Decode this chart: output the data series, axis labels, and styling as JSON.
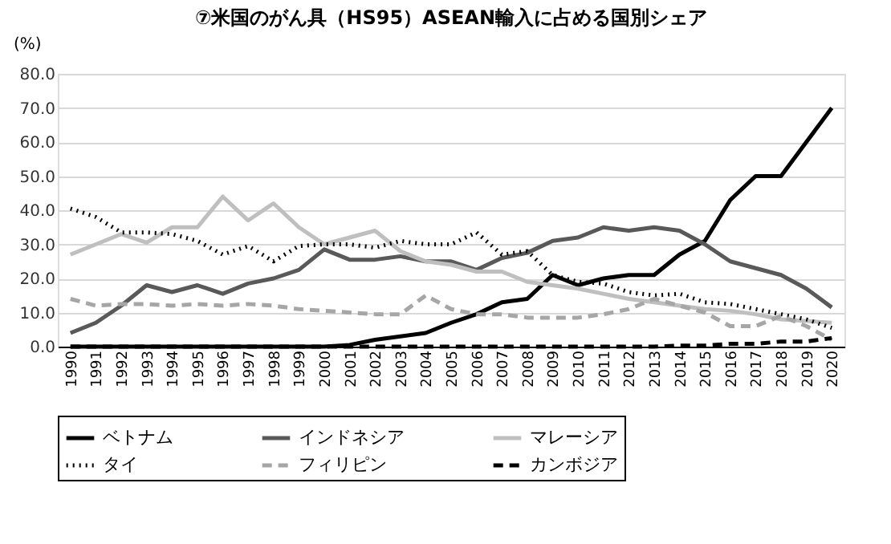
{
  "chart_data": {
    "type": "line",
    "title": "⑦米国のがん具（HS95）ASEAN輸入に占める国別シェア",
    "ylabel": "(%)",
    "categories": [
      "1990",
      "1991",
      "1992",
      "1993",
      "1994",
      "1995",
      "1996",
      "1997",
      "1998",
      "1999",
      "2000",
      "2001",
      "2002",
      "2003",
      "2004",
      "2005",
      "2006",
      "2007",
      "2008",
      "2009",
      "2010",
      "2011",
      "2012",
      "2013",
      "2014",
      "2015",
      "2016",
      "2017",
      "2018",
      "2019",
      "2020"
    ],
    "series": [
      {
        "name": "ベトナム",
        "color": "#000000",
        "line_style": "solid",
        "values": [
          0,
          0,
          0,
          0,
          0,
          0,
          0,
          0,
          0,
          0,
          0,
          0.5,
          2,
          3,
          4,
          7,
          9.5,
          13,
          14,
          21,
          18,
          20,
          21,
          21,
          27,
          31,
          43,
          50,
          50,
          60,
          70
        ]
      },
      {
        "name": "インドネシア",
        "color": "#595959",
        "line_style": "solid",
        "values": [
          4,
          7,
          12,
          18,
          16,
          18,
          15.5,
          18.5,
          20,
          22.5,
          28.5,
          25.5,
          25.5,
          26.5,
          25,
          25,
          22.5,
          26,
          27.5,
          31,
          32,
          35,
          34,
          35,
          34,
          30,
          25,
          23,
          21,
          17,
          11.5
        ]
      },
      {
        "name": "マレーシア",
        "color": "#bfbfbf",
        "line_style": "solid",
        "values": [
          27,
          30,
          33,
          30.5,
          35,
          35,
          44,
          37,
          42,
          35,
          30,
          32,
          34,
          28,
          25,
          24,
          22,
          22,
          19,
          18,
          17,
          15.5,
          14,
          13,
          12,
          11,
          10.5,
          9.5,
          8,
          7.5,
          7
        ]
      },
      {
        "name": "タイ",
        "color": "#000000",
        "line_style": "dotted",
        "values": [
          40.5,
          38,
          33.5,
          33.5,
          33,
          31,
          27,
          29.5,
          25,
          29.5,
          30,
          30,
          29,
          31,
          30,
          30,
          33.5,
          27,
          28,
          21,
          19,
          18.5,
          16,
          15,
          15.5,
          13,
          12.5,
          11,
          9.5,
          8,
          5.5
        ]
      },
      {
        "name": "フィリピン",
        "color": "#a6a6a6",
        "line_style": "dashed",
        "values": [
          14,
          12,
          12.5,
          12.5,
          12,
          12.5,
          12,
          12.5,
          12,
          11,
          10.5,
          10,
          9.5,
          9.5,
          15,
          11,
          9.5,
          9.5,
          8.5,
          8.5,
          8.5,
          9.5,
          11,
          14,
          12,
          10,
          6,
          6,
          9,
          6,
          2
        ]
      },
      {
        "name": "カンボジア",
        "color": "#000000",
        "line_style": "dashed",
        "values": [
          0,
          0,
          0,
          0,
          0,
          0,
          0,
          0,
          0,
          0,
          0,
          0,
          0,
          0,
          0,
          0,
          0,
          0,
          0,
          0,
          0,
          0,
          0,
          0,
          0.3,
          0.3,
          0.8,
          0.8,
          1.5,
          1.5,
          2.5
        ]
      }
    ],
    "ylim": [
      0,
      80
    ],
    "yticks": [
      {
        "value": 0,
        "label": "0.0"
      },
      {
        "value": 10,
        "label": "10.0"
      },
      {
        "value": 20,
        "label": "20.0"
      },
      {
        "value": 30,
        "label": "30.0"
      },
      {
        "value": 40,
        "label": "40.0"
      },
      {
        "value": 50,
        "label": "50.0"
      },
      {
        "value": 60,
        "label": "60.0"
      },
      {
        "value": 70,
        "label": "70.0"
      },
      {
        "value": 80,
        "label": "80.0"
      }
    ],
    "grid": "y",
    "legend": "bottom",
    "marker": "none"
  }
}
